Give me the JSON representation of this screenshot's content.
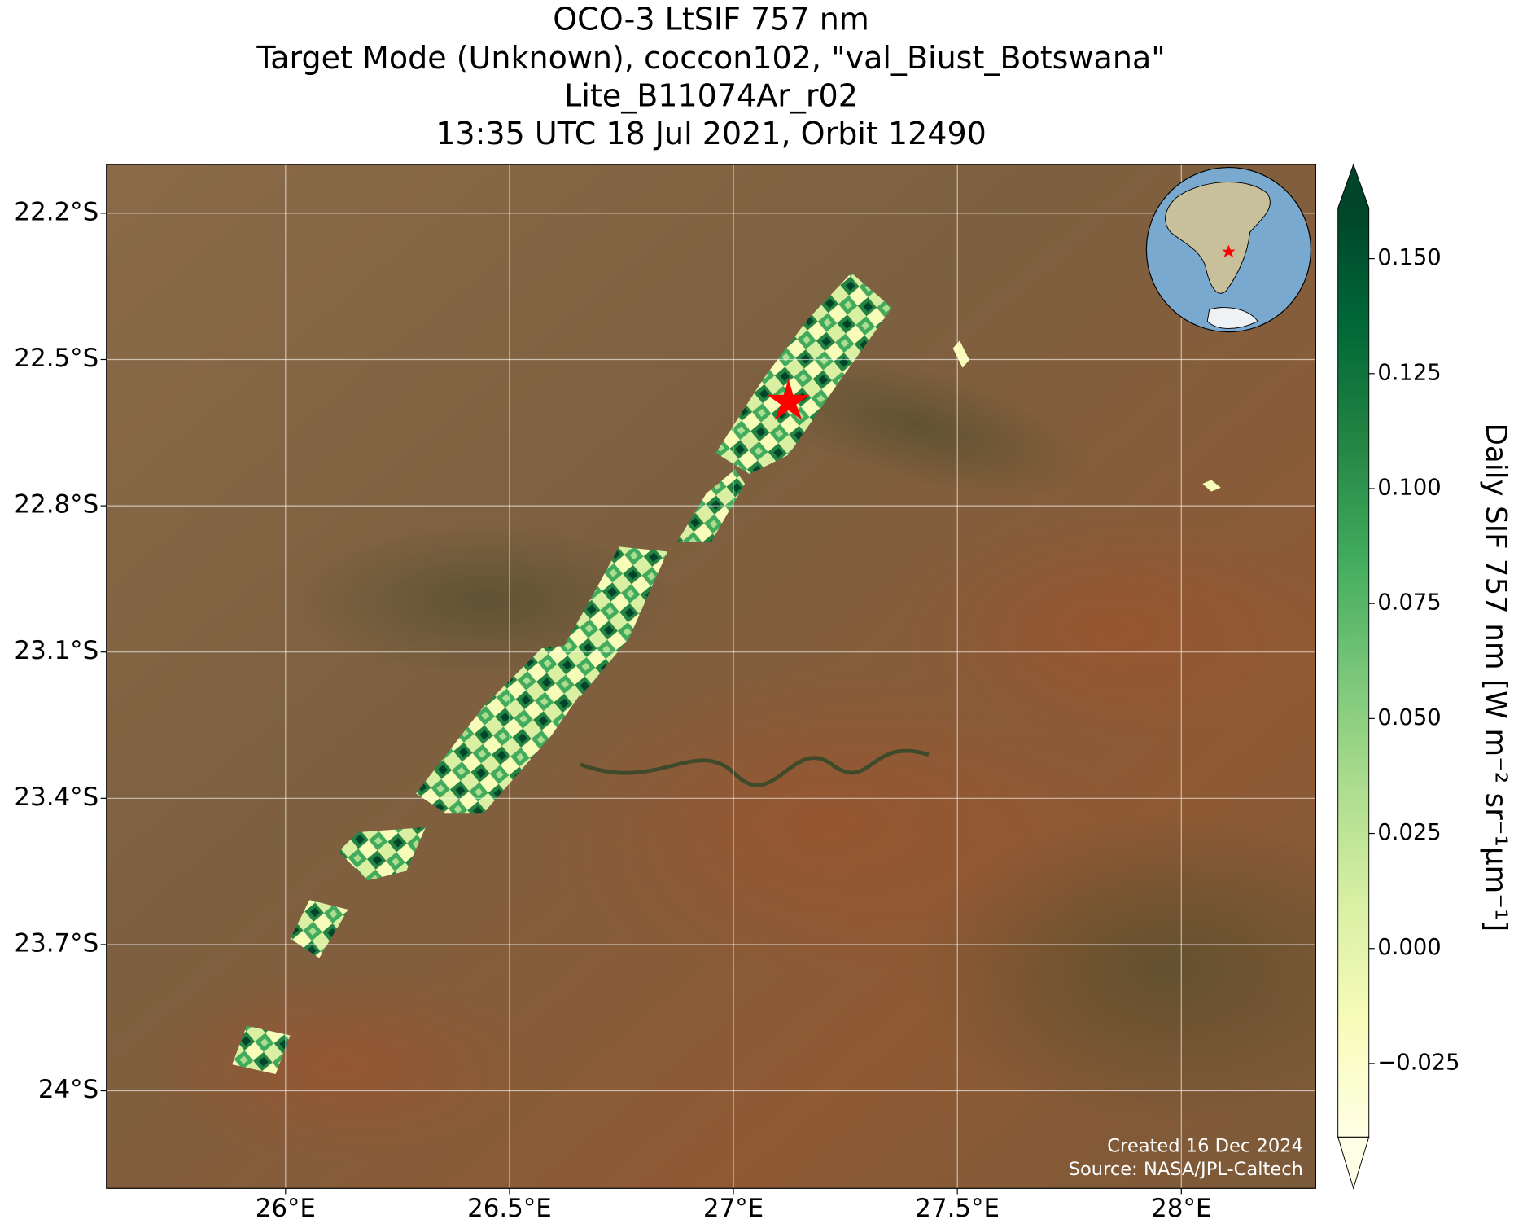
{
  "title": [
    "OCO-3 LtSIF 757 nm",
    "Target Mode (Unknown), coccon102, \"val_Biust_Botswana\"",
    "Lite_B11074Ar_r02",
    "13:35 UTC 18 Jul 2021, Orbit 12490"
  ],
  "map": {
    "xlim": [
      25.6,
      28.3
    ],
    "ylim": [
      -24.2,
      -22.1
    ],
    "xticks": [
      {
        "value": 26,
        "label": "26°E"
      },
      {
        "value": 26.5,
        "label": "26.5°E"
      },
      {
        "value": 27,
        "label": "27°E"
      },
      {
        "value": 27.5,
        "label": "27.5°E"
      },
      {
        "value": 28,
        "label": "28°E"
      }
    ],
    "yticks": [
      {
        "value": -22.2,
        "label": "22.2°S"
      },
      {
        "value": -22.5,
        "label": "22.5°S"
      },
      {
        "value": -22.8,
        "label": "22.8°S"
      },
      {
        "value": -23.1,
        "label": "23.1°S"
      },
      {
        "value": -23.4,
        "label": "23.4°S"
      },
      {
        "value": -23.7,
        "label": "23.7°S"
      },
      {
        "value": -24,
        "label": "24°S"
      }
    ],
    "grid": true,
    "credits": [
      "Created 16 Dec 2024",
      "Source: NASA/JPL-Caltech"
    ]
  },
  "colorbar": {
    "label": "Daily SIF 757 nm [W m⁻² sr⁻¹μm⁻¹]",
    "lim": [
      -0.041,
      0.161
    ],
    "ticks": [
      {
        "value": -0.025,
        "label": "−0.025"
      },
      {
        "value": 0,
        "label": "0.000"
      },
      {
        "value": 0.025,
        "label": "0.025"
      },
      {
        "value": 0.05,
        "label": "0.050"
      },
      {
        "value": 0.075,
        "label": "0.075"
      },
      {
        "value": 0.1,
        "label": "0.100"
      },
      {
        "value": 0.125,
        "label": "0.125"
      },
      {
        "value": 0.15,
        "label": "0.150"
      }
    ],
    "colors": [
      "#ffffe5",
      "#f7fcb9",
      "#d9f0a3",
      "#addd8e",
      "#78c679",
      "#41ab5d",
      "#238443",
      "#006837",
      "#004529"
    ]
  }
}
